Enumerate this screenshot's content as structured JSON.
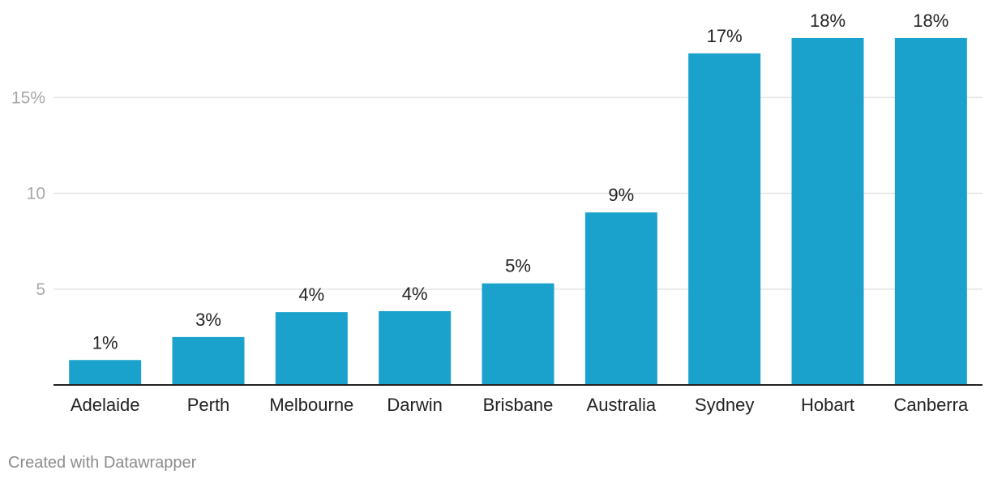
{
  "chart_data": {
    "type": "bar",
    "categories": [
      "Adelaide",
      "Perth",
      "Melbourne",
      "Darwin",
      "Brisbane",
      "Australia",
      "Sydney",
      "Hobart",
      "Canberra"
    ],
    "values": [
      1.3,
      2.5,
      3.8,
      3.85,
      5.3,
      9.0,
      17.3,
      18.1,
      18.1
    ],
    "value_labels": [
      "1%",
      "3%",
      "4%",
      "4%",
      "5%",
      "9%",
      "17%",
      "18%",
      "18%"
    ],
    "yticks": [
      {
        "value": 5,
        "label": "5"
      },
      {
        "value": 10,
        "label": "10"
      },
      {
        "value": 15,
        "label": "15%"
      }
    ],
    "ylim": [
      0,
      20
    ],
    "grid": true,
    "bar_color": "#1aa1cc",
    "title": "",
    "xlabel": "",
    "ylabel": ""
  },
  "footer": {
    "credit": "Created with Datawrapper"
  }
}
